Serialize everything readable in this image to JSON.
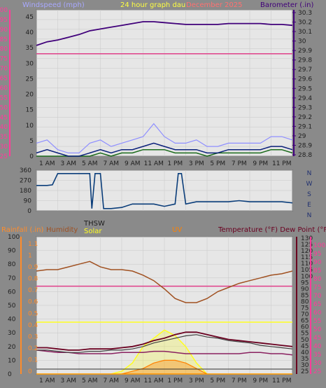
{
  "colors": {
    "background": "#8a8a8a",
    "plot_bg": "#e6e6e6",
    "grid": "#c8c8c8",
    "wind_axis": "#ff3b9a",
    "windspeed_label": "#a8a8ff",
    "graph_title": "#ffff40",
    "date_label": "#ff7070",
    "barometer": "#40007a",
    "wind_dir": "#0a3d7a",
    "rain_axis": "#ff8c2a",
    "humidity": "#a05020",
    "thsw": "#202020",
    "solar": "#ffff20",
    "uv": "#ff8000",
    "temperature": "#6a0020",
    "dew_point": "#8a2060",
    "temp_axis": "#6a0020",
    "temp_axis2": "#ff3b9a"
  },
  "header": {
    "windspeed_label": "Windspeed (mph)",
    "graph_title": "24 hour graph dau",
    "date_label": "December 2025",
    "barometer_label": "Barometer (.in)"
  },
  "middle": {
    "compass": [
      "N",
      "W",
      "S",
      "E",
      "N"
    ]
  },
  "bottom_header": {
    "rainfall_label": "Rainfall (.in)",
    "humidity_label": "Humidity",
    "thsw_label": "THSW",
    "solar_label": "Solar",
    "uv_label": "UV",
    "temp_label": "Temperature (°F) Dew Point (°F)"
  },
  "time_labels": [
    "1 AM",
    "3 AM",
    "5 AM",
    "7 AM",
    "9 AM",
    "11 AM",
    "1 PM",
    "3 PM",
    "5 PM",
    "7 PM",
    "9 PM",
    "11 PM"
  ],
  "chart_data": [
    {
      "type": "line",
      "name": "wind-baro",
      "y_left_ticks": [
        "100",
        "95",
        "90",
        "85",
        "80",
        "75",
        "70",
        "65",
        "60",
        "55",
        "50",
        "45",
        "40",
        "35",
        "30",
        "25"
      ],
      "y_mid_ticks": [
        "45",
        "40",
        "35",
        "30",
        "25",
        "20",
        "15",
        "10",
        "5",
        "0"
      ],
      "y_right_ticks": [
        "30.3",
        "30.2",
        "30.1",
        "30",
        "29.9",
        "29.8",
        "29.7",
        "29.6",
        "29.5",
        "29.4",
        "29.3",
        "29.2",
        "29.1",
        "29",
        "28.9",
        "28.8"
      ],
      "ylim_wind": [
        0,
        45
      ],
      "ylim_baro": [
        28.75,
        30.35
      ],
      "hours": [
        0,
        1,
        2,
        3,
        4,
        5,
        6,
        7,
        8,
        9,
        10,
        11,
        12,
        13,
        14,
        15,
        16,
        17,
        18,
        19,
        20,
        21,
        22,
        23,
        24
      ],
      "barometer": [
        29.96,
        30.0,
        30.02,
        30.05,
        30.08,
        30.12,
        30.14,
        30.16,
        30.18,
        30.2,
        30.22,
        30.22,
        30.21,
        30.2,
        30.19,
        30.19,
        30.19,
        30.19,
        30.2,
        30.2,
        30.2,
        30.2,
        30.19,
        30.19,
        30.18
      ],
      "flat_magenta_line": [
        31.5,
        31.5,
        31.5,
        31.5,
        31.5,
        31.5,
        31.5,
        31.5,
        31.5,
        31.5,
        31.5,
        31.5,
        31.5,
        31.5,
        31.5,
        31.5,
        31.5,
        31.5,
        31.5,
        31.5,
        31.5,
        31.5,
        31.5,
        31.5,
        31.5
      ],
      "wind_gust": [
        4,
        5,
        2,
        1,
        1,
        4,
        5,
        3,
        4,
        5,
        6,
        10,
        6,
        4,
        4,
        5,
        3,
        3,
        4,
        4,
        4,
        4,
        6,
        6,
        5
      ],
      "wind_avg": [
        1,
        2,
        1,
        0,
        0,
        1,
        2,
        1,
        2,
        2,
        3,
        4,
        3,
        2,
        2,
        2,
        1,
        1,
        2,
        2,
        2,
        2,
        3,
        3,
        2
      ],
      "wind_low": [
        0,
        0,
        0,
        0,
        0,
        0,
        1,
        0,
        1,
        1,
        2,
        2,
        2,
        1,
        1,
        1,
        0,
        1,
        1,
        1,
        1,
        1,
        2,
        2,
        1
      ]
    },
    {
      "type": "line",
      "name": "wind-direction",
      "y_ticks": [
        "360",
        "270",
        "180",
        "90",
        "0"
      ],
      "ylim": [
        0,
        360
      ],
      "hours": [
        0,
        1,
        1.5,
        2,
        3,
        4,
        5,
        5.2,
        5.5,
        6,
        6.3,
        6.6,
        7,
        8,
        9,
        10,
        11,
        12,
        13,
        13.3,
        13.6,
        14,
        15,
        16,
        17,
        18,
        19,
        20,
        21,
        22,
        23,
        24
      ],
      "values": [
        225,
        225,
        230,
        330,
        330,
        330,
        330,
        20,
        330,
        330,
        20,
        20,
        20,
        30,
        60,
        60,
        60,
        40,
        60,
        330,
        330,
        60,
        80,
        80,
        80,
        80,
        90,
        80,
        80,
        80,
        80,
        70
      ]
    },
    {
      "type": "line",
      "name": "rain-temp",
      "y_left_ticks": [
        "100",
        "90",
        "80",
        "70",
        "60",
        "50",
        "40",
        "30",
        "20",
        "10",
        "0"
      ],
      "y_rain_ticks": [
        "1.1",
        "1",
        "0.9",
        "0.8",
        "0.7",
        "0.6",
        "0.5",
        "0.4",
        "0.3",
        "0.2",
        "0.1",
        "0"
      ],
      "y_right_ticks": [
        "130",
        "125",
        "120",
        "115",
        "110",
        "105",
        "100",
        "95",
        "90",
        "85",
        "80",
        "75",
        "70",
        "65",
        "60",
        "55",
        "50",
        "45",
        "40",
        "35",
        "30",
        "25"
      ],
      "y_right2_ticks": [
        "100",
        "95",
        "90",
        "85",
        "80",
        "75",
        "70",
        "65",
        "60",
        "55",
        "50",
        "45",
        "40",
        "35",
        "30",
        "25"
      ],
      "ylim_humidity": [
        0,
        100
      ],
      "ylim_temp": [
        20,
        135
      ],
      "hours": [
        0,
        1,
        2,
        3,
        4,
        5,
        6,
        7,
        8,
        9,
        10,
        11,
        12,
        13,
        14,
        15,
        16,
        17,
        18,
        19,
        20,
        21,
        22,
        23,
        24
      ],
      "humidity": [
        75,
        76,
        76,
        78,
        80,
        82,
        78,
        76,
        76,
        75,
        72,
        68,
        62,
        55,
        52,
        52,
        55,
        60,
        63,
        66,
        68,
        70,
        72,
        73,
        75
      ],
      "magenta_flat": [
        64,
        64,
        64,
        64,
        64,
        64,
        64,
        64,
        64,
        64,
        64,
        64,
        64,
        64,
        64,
        64,
        64,
        64,
        64,
        64,
        64,
        64,
        64,
        64,
        64
      ],
      "thsw": [
        40,
        40,
        39,
        38,
        38,
        39,
        39,
        40,
        40,
        41,
        43,
        46,
        48,
        50,
        52,
        53,
        51,
        50,
        48,
        47,
        46,
        44,
        43,
        42,
        41
      ],
      "temperature": [
        42,
        42,
        41,
        40,
        40,
        41,
        41,
        41,
        42,
        43,
        45,
        48,
        50,
        53,
        55,
        55,
        53,
        51,
        49,
        48,
        47,
        46,
        45,
        44,
        43
      ],
      "dew_point": [
        40,
        39,
        38,
        38,
        37,
        37,
        37,
        37,
        38,
        38,
        38,
        39,
        39,
        38,
        37,
        37,
        37,
        37,
        37,
        37,
        38,
        38,
        37,
        37,
        36
      ],
      "solar": [
        0,
        0,
        0,
        0,
        0,
        0,
        0,
        0,
        2,
        8,
        20,
        26,
        32,
        28,
        20,
        8,
        0,
        0,
        0,
        0,
        0,
        0,
        0,
        0,
        0
      ],
      "uv": [
        0,
        0,
        0,
        0,
        0,
        0,
        0,
        0,
        0,
        1,
        2,
        4,
        5,
        5,
        4,
        2,
        0,
        0,
        0,
        0,
        0,
        0,
        0,
        0,
        0
      ]
    }
  ]
}
